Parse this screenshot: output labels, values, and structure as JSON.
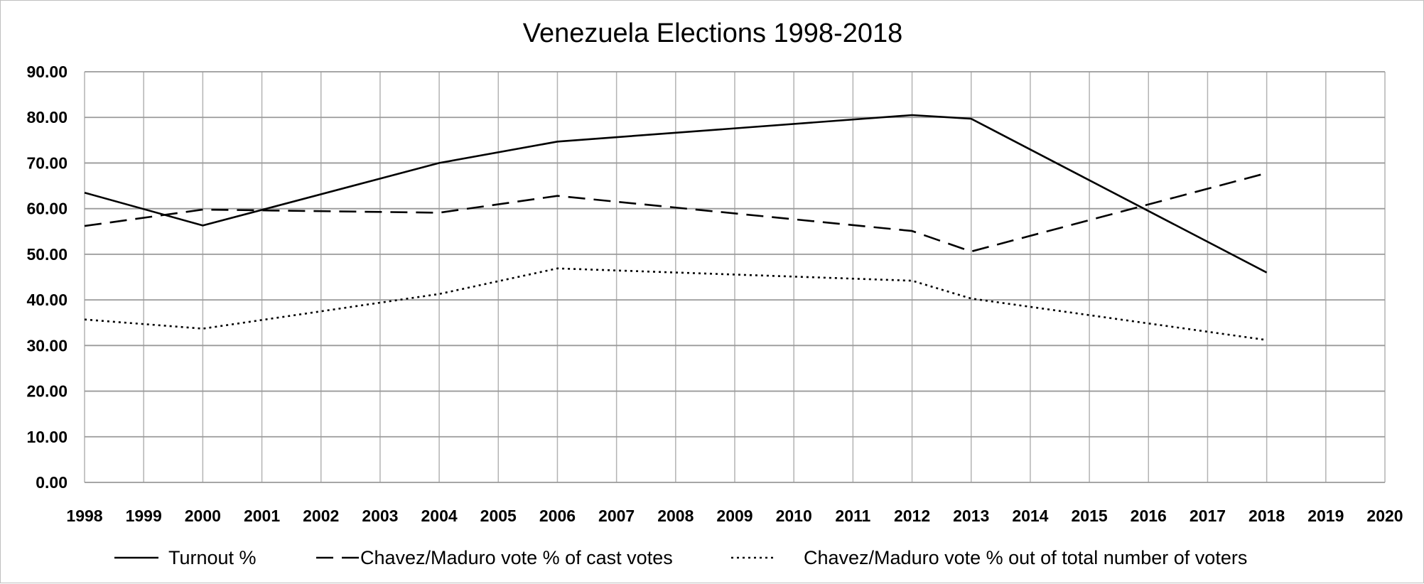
{
  "chart_data": {
    "type": "line",
    "title": "Venezuela Elections 1998-2018",
    "xlabel": "",
    "ylabel": "",
    "x": [
      1998,
      1999,
      2000,
      2001,
      2002,
      2003,
      2004,
      2005,
      2006,
      2007,
      2008,
      2009,
      2010,
      2011,
      2012,
      2013,
      2014,
      2015,
      2016,
      2017,
      2018,
      2019,
      2020
    ],
    "x_tick_labels": [
      "1998",
      "1999",
      "2000",
      "2001",
      "2002",
      "2003",
      "2004",
      "2005",
      "2006",
      "2007",
      "2008",
      "2009",
      "2010",
      "2011",
      "2012",
      "2013",
      "2014",
      "2015",
      "2016",
      "2017",
      "2018",
      "2019",
      "2020"
    ],
    "xlim": [
      1998,
      2020
    ],
    "ylim": [
      0,
      90
    ],
    "y_ticks": [
      0,
      10,
      20,
      30,
      40,
      50,
      60,
      70,
      80,
      90
    ],
    "y_tick_labels": [
      "0.00",
      "10.00",
      "20.00",
      "30.00",
      "40.00",
      "50.00",
      "60.00",
      "70.00",
      "80.00",
      "90.00"
    ],
    "grid": true,
    "legend_position": "bottom",
    "series": [
      {
        "name": "Turnout %",
        "style": "solid",
        "color": "#000000",
        "points": [
          [
            1998,
            63.5
          ],
          [
            2000,
            56.3
          ],
          [
            2004,
            70.0
          ],
          [
            2006,
            74.7
          ],
          [
            2012,
            80.5
          ],
          [
            2013,
            79.7
          ],
          [
            2018,
            46.0
          ]
        ]
      },
      {
        "name": "Chavez/Maduro vote % of cast votes",
        "style": "dashed",
        "color": "#000000",
        "points": [
          [
            1998,
            56.2
          ],
          [
            2000,
            59.8
          ],
          [
            2004,
            59.1
          ],
          [
            2006,
            62.8
          ],
          [
            2012,
            55.1
          ],
          [
            2013,
            50.6
          ],
          [
            2018,
            67.8
          ]
        ]
      },
      {
        "name": "Chavez/Maduro vote % out of total number of voters",
        "style": "dotted",
        "color": "#000000",
        "points": [
          [
            1998,
            35.7
          ],
          [
            2000,
            33.7
          ],
          [
            2004,
            41.3
          ],
          [
            2006,
            46.9
          ],
          [
            2012,
            44.2
          ],
          [
            2013,
            40.3
          ],
          [
            2018,
            31.2
          ]
        ]
      }
    ]
  }
}
